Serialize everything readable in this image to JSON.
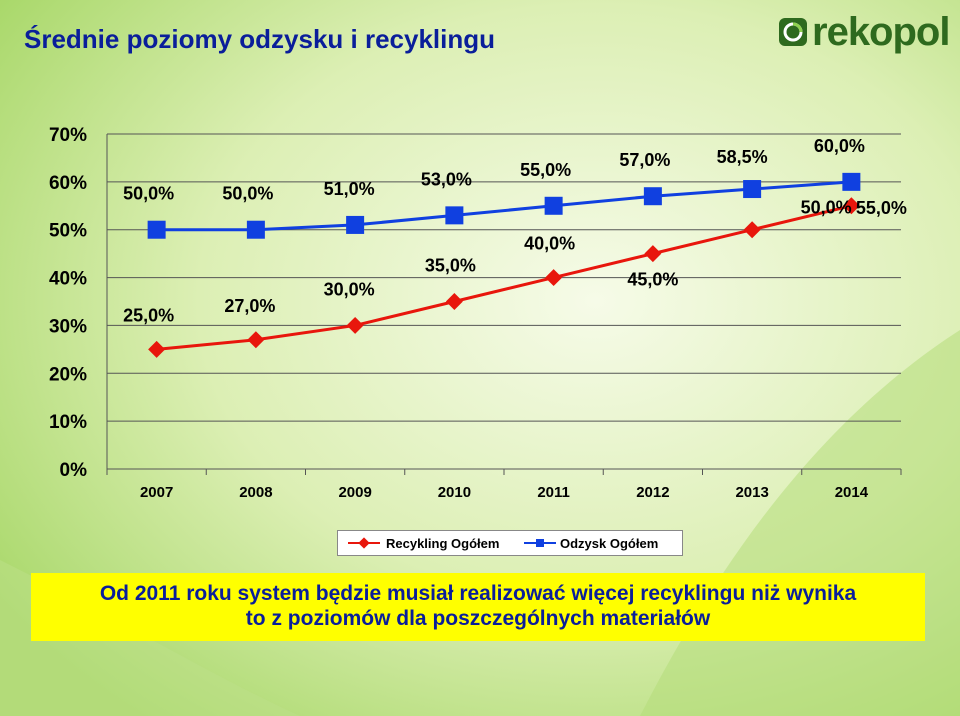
{
  "header": {
    "title": "Średnie poziomy odzysku i recyklingu",
    "logo_text": "rekopol"
  },
  "banner": {
    "line1": "Od 2011 roku system będzie musiał realizować więcej recyklingu niż wynika",
    "line2": "to z poziomów dla poszczególnych materiałów"
  },
  "colors": {
    "recycling": "#e8160c",
    "recovery": "#1040e0",
    "title": "#0a1e9a",
    "banner_bg": "#ffff00",
    "logo": "#2e6a1e"
  },
  "chart_data": {
    "type": "line",
    "categories": [
      "2007",
      "2008",
      "2009",
      "2010",
      "2011",
      "2012",
      "2013",
      "2014"
    ],
    "series": [
      {
        "name": "Recykling Ogółem",
        "values": [
          25,
          27,
          30,
          35,
          40,
          45,
          50,
          55
        ],
        "labels": [
          "25,0%",
          "27,0%",
          "30,0%",
          "35,0%",
          "40,0%",
          "45,0%",
          "50,0%",
          "55,0%"
        ],
        "marker": "diamond",
        "color": "#e8160c"
      },
      {
        "name": "Odzysk Ogółem",
        "values": [
          50,
          50,
          51,
          53,
          55,
          57,
          58.5,
          60
        ],
        "labels": [
          "50,0%",
          "50,0%",
          "51,0%",
          "53,0%",
          "55,0%",
          "57,0%",
          "58,5%",
          "60,0%"
        ],
        "marker": "square",
        "color": "#1040e0"
      }
    ],
    "y_ticks": [
      "0%",
      "10%",
      "20%",
      "30%",
      "40%",
      "50%",
      "60%",
      "70%"
    ],
    "ylim": [
      0,
      70
    ],
    "grid": true,
    "legend_position": "bottom"
  }
}
